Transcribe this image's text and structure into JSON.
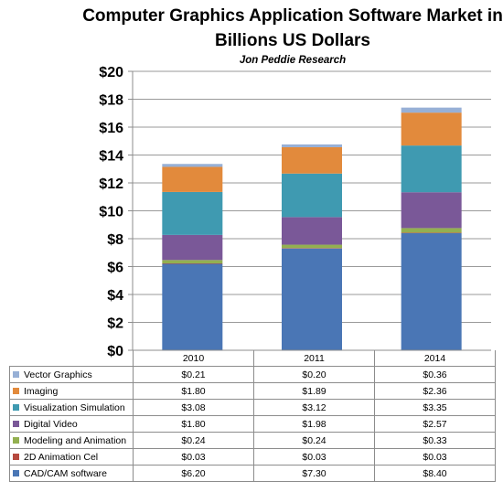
{
  "chart_data": {
    "type": "bar",
    "stacked": true,
    "title": "Computer Graphics Application Software Market in Billions US Dollars",
    "subtitle": "Jon Peddie Research",
    "categories": [
      "2010",
      "2011",
      "2014"
    ],
    "ylim": [
      0,
      20
    ],
    "yticks": [
      "$0",
      "$2",
      "$4",
      "$6",
      "$8",
      "$10",
      "$12",
      "$14",
      "$16",
      "$18",
      "$20"
    ],
    "grid": true,
    "legend": "data-table",
    "series": [
      {
        "name": "CAD/CAM software",
        "color": "#4a76b5",
        "values": [
          6.2,
          7.3,
          8.4
        ],
        "labels": [
          "$6.20",
          "$7.30",
          "$8.40"
        ]
      },
      {
        "name": "2D Animation Cel",
        "color": "#b6493f",
        "values": [
          0.03,
          0.03,
          0.03
        ],
        "labels": [
          "$0.03",
          "$0.03",
          "$0.03"
        ]
      },
      {
        "name": "Modeling and Animation",
        "color": "#93b050",
        "values": [
          0.24,
          0.24,
          0.33
        ],
        "labels": [
          "$0.24",
          "$0.24",
          "$0.33"
        ]
      },
      {
        "name": "Digital Video",
        "color": "#7a5898",
        "values": [
          1.8,
          1.98,
          2.57
        ],
        "labels": [
          "$1.80",
          "$1.98",
          "$2.57"
        ]
      },
      {
        "name": "Visualization Simulation",
        "color": "#3f9ab1",
        "values": [
          3.08,
          3.12,
          3.35
        ],
        "labels": [
          "$3.08",
          "$3.12",
          "$3.35"
        ]
      },
      {
        "name": "Imaging",
        "color": "#e28a3c",
        "values": [
          1.8,
          1.89,
          2.36
        ],
        "labels": [
          "$1.80",
          "$1.89",
          "$2.36"
        ]
      },
      {
        "name": "Vector Graphics",
        "color": "#97b0d6",
        "values": [
          0.21,
          0.2,
          0.36
        ],
        "labels": [
          "$0.21",
          "$0.20",
          "$0.36"
        ]
      }
    ]
  }
}
